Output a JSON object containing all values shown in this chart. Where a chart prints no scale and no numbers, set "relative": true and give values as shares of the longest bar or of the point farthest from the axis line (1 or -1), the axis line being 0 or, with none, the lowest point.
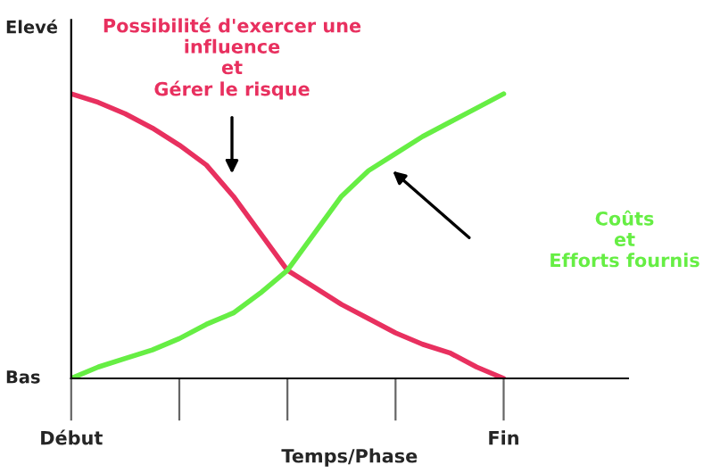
{
  "chart_data": {
    "type": "line",
    "xlabel": "Temps/Phase",
    "relative": true,
    "categories": [
      "Début",
      null,
      null,
      null,
      null,
      null,
      null,
      null,
      null,
      null,
      null,
      null,
      null,
      null,
      null,
      null,
      "Fin"
    ],
    "annotations": [
      "Bas",
      "Elevé"
    ],
    "legend": false,
    "series": [
      {
        "name": "Possibilité d'exercer une\ninfluence\net\nGérer le risque",
        "color": "#e8305f",
        "values": [
          1,
          0.97,
          0.93,
          0.88,
          0.82,
          0.75,
          0.64,
          0.51,
          0.38,
          0.32,
          0.26,
          0.21,
          0.16,
          0.12,
          0.09,
          0.04,
          0
        ]
      },
      {
        "name": "Coûts\net\nEfforts fournis",
        "color": "#66ee44",
        "values": [
          0,
          0.04,
          0.07,
          0.1,
          0.14,
          0.19,
          0.23,
          0.3,
          0.38,
          0.51,
          0.64,
          0.73,
          0.79,
          0.85,
          0.9,
          0.95,
          1
        ]
      }
    ]
  }
}
